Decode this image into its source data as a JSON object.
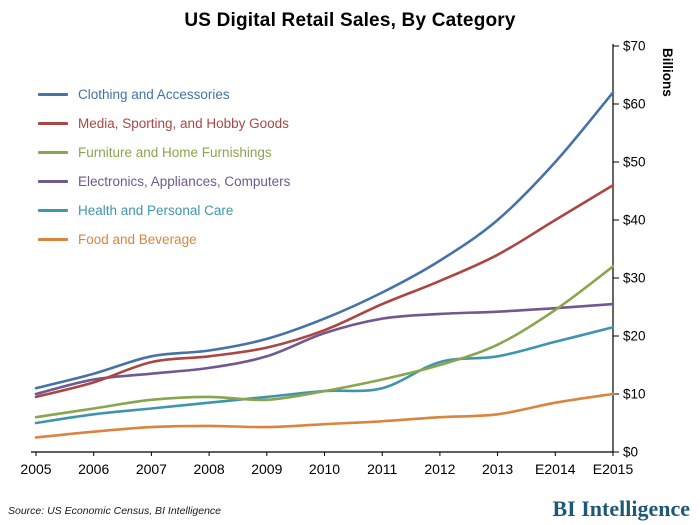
{
  "title": "US Digital Retail Sales, By Category",
  "footer": {
    "source": "Source: US Economic Census, BI Intelligence",
    "brand": "BI Intelligence",
    "brand_color": "#1E5878"
  },
  "chart_data": {
    "type": "line",
    "categories": [
      "2005",
      "2006",
      "2007",
      "2008",
      "2009",
      "2010",
      "2011",
      "2012",
      "2013",
      "E2014",
      "E2015"
    ],
    "title": "US Digital Retail Sales, By Category",
    "xlabel": "",
    "ylabel": "Billions",
    "ylim": [
      0,
      70
    ],
    "ytick_step": 10,
    "ytick_prefix": "$",
    "grid": false,
    "legend_position": "top-left",
    "series": [
      {
        "name": "Clothing and Accessories",
        "color": "#4572A7",
        "values": [
          11,
          13.5,
          16.5,
          17.5,
          19.5,
          23,
          27.5,
          33,
          40,
          50,
          62
        ]
      },
      {
        "name": "Media, Sporting, and Hobby Goods",
        "color": "#AA4643",
        "values": [
          9.5,
          12,
          15.5,
          16.5,
          18,
          21,
          25.5,
          29.5,
          34,
          40,
          46
        ]
      },
      {
        "name": "Furniture and Home Furnishings",
        "color": "#89A54E",
        "values": [
          6,
          7.5,
          9,
          9.5,
          9,
          10.5,
          12.5,
          15,
          18.5,
          24.5,
          32
        ]
      },
      {
        "name": "Electronics, Appliances, Computers",
        "color": "#71588F",
        "values": [
          10,
          12.5,
          13.5,
          14.5,
          16.5,
          20.5,
          23,
          23.8,
          24.2,
          24.8,
          25.5
        ]
      },
      {
        "name": "Health and Personal Care",
        "color": "#3D96AE",
        "values": [
          5,
          6.5,
          7.5,
          8.5,
          9.5,
          10.5,
          11,
          15.5,
          16.5,
          19,
          21.5
        ]
      },
      {
        "name": "Food and Beverage",
        "color": "#DB843D",
        "values": [
          2.5,
          3.5,
          4.3,
          4.5,
          4.3,
          4.8,
          5.3,
          6,
          6.5,
          8.5,
          10
        ]
      }
    ]
  }
}
